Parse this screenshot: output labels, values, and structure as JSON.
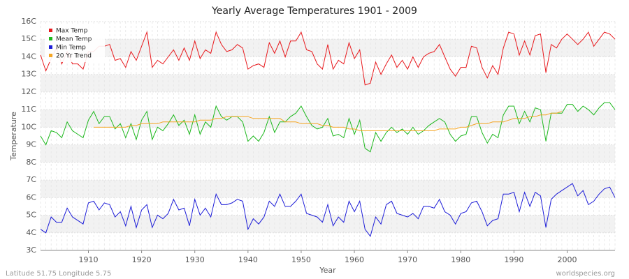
{
  "chart_data": {
    "type": "line",
    "title": "Yearly Average Temperatures 1901 - 2009",
    "x_label": "Year",
    "y_label": "Temperature",
    "footer_left": "Latitude 51.75 Longitude 5.75",
    "footer_right": "worldspecies.org",
    "legend": "top-left",
    "grid": true,
    "xlim": [
      1901,
      2009
    ],
    "xticks": [
      1910,
      1920,
      1930,
      1940,
      1950,
      1960,
      1970,
      1980,
      1990,
      2000
    ],
    "ylim": [
      3,
      16
    ],
    "yticks": [
      {
        "value": 3,
        "label": "3C"
      },
      {
        "value": 4,
        "label": "4C"
      },
      {
        "value": 5,
        "label": "5C"
      },
      {
        "value": 6,
        "label": "6C"
      },
      {
        "value": 7,
        "label": "7C"
      },
      {
        "value": 8,
        "label": "8C"
      },
      {
        "value": 9,
        "label": "9C"
      },
      {
        "value": 10,
        "label": "10C"
      },
      {
        "value": 11,
        "label": "11C"
      },
      {
        "value": 12,
        "label": "12C"
      },
      {
        "value": 13,
        "label": "13C"
      },
      {
        "value": 14,
        "label": "14C"
      },
      {
        "value": 15,
        "label": "15C"
      },
      {
        "value": 16,
        "label": "16C"
      }
    ],
    "x": [
      1901,
      1902,
      1903,
      1904,
      1905,
      1906,
      1907,
      1908,
      1909,
      1910,
      1911,
      1912,
      1913,
      1914,
      1915,
      1916,
      1917,
      1918,
      1919,
      1920,
      1921,
      1922,
      1923,
      1924,
      1925,
      1926,
      1927,
      1928,
      1929,
      1930,
      1931,
      1932,
      1933,
      1934,
      1935,
      1936,
      1937,
      1938,
      1939,
      1940,
      1941,
      1942,
      1943,
      1944,
      1945,
      1946,
      1947,
      1948,
      1949,
      1950,
      1951,
      1952,
      1953,
      1954,
      1955,
      1956,
      1957,
      1958,
      1959,
      1960,
      1961,
      1962,
      1963,
      1964,
      1965,
      1966,
      1967,
      1968,
      1969,
      1970,
      1971,
      1972,
      1973,
      1974,
      1975,
      1976,
      1977,
      1978,
      1979,
      1980,
      1981,
      1982,
      1983,
      1984,
      1985,
      1986,
      1987,
      1988,
      1989,
      1990,
      1991,
      1992,
      1993,
      1994,
      1995,
      1996,
      1997,
      1998,
      1999,
      2000,
      2001,
      2002,
      2003,
      2004,
      2005,
      2006,
      2007,
      2008,
      2009
    ],
    "series": [
      {
        "name": "Max Temp",
        "color": "#e8191d",
        "values": [
          14.1,
          13.2,
          13.9,
          14.5,
          13.6,
          14.3,
          13.6,
          13.6,
          13.3,
          14.3,
          14.3,
          14.6,
          14.6,
          14.7,
          13.8,
          13.9,
          13.4,
          14.3,
          13.8,
          14.6,
          15.4,
          13.4,
          13.8,
          13.6,
          14.0,
          14.4,
          13.8,
          14.5,
          13.8,
          14.9,
          13.9,
          14.4,
          14.2,
          15.4,
          14.7,
          14.3,
          14.4,
          14.7,
          14.5,
          13.3,
          13.5,
          13.6,
          13.4,
          14.8,
          14.2,
          14.9,
          14.0,
          14.9,
          14.9,
          15.4,
          14.4,
          14.3,
          13.6,
          13.3,
          14.7,
          13.3,
          13.8,
          13.6,
          14.8,
          13.9,
          14.4,
          12.4,
          12.5,
          13.7,
          13.0,
          13.6,
          14.1,
          13.4,
          13.8,
          13.3,
          14.0,
          13.4,
          14.0,
          14.2,
          14.3,
          14.7,
          14.0,
          13.3,
          12.9,
          13.4,
          13.4,
          14.6,
          14.5,
          13.4,
          12.8,
          13.5,
          13.0,
          14.5,
          15.4,
          15.3,
          14.1,
          14.9,
          14.1,
          15.2,
          15.3,
          13.1,
          14.7,
          14.5,
          15.0,
          15.3,
          15.0,
          14.7,
          15.0,
          15.4,
          14.6,
          15.0,
          15.4,
          15.3,
          15.0
        ]
      },
      {
        "name": "Mean Temp",
        "color": "#1db81d",
        "values": [
          9.5,
          9.0,
          9.8,
          9.7,
          9.4,
          10.3,
          9.8,
          9.6,
          9.4,
          10.4,
          10.9,
          10.2,
          10.6,
          10.6,
          9.9,
          10.2,
          9.4,
          10.2,
          9.3,
          10.4,
          10.9,
          9.3,
          10.0,
          9.8,
          10.2,
          10.7,
          10.1,
          10.4,
          9.6,
          10.7,
          9.6,
          10.3,
          10.0,
          11.2,
          10.6,
          10.4,
          10.6,
          10.6,
          10.3,
          9.2,
          9.5,
          9.2,
          9.7,
          10.6,
          9.7,
          10.3,
          10.3,
          10.6,
          10.8,
          11.2,
          10.6,
          10.1,
          9.9,
          10.0,
          10.5,
          9.5,
          9.6,
          9.4,
          10.5,
          9.6,
          10.4,
          8.8,
          8.6,
          9.7,
          9.2,
          9.7,
          10.0,
          9.7,
          9.9,
          9.6,
          10.0,
          9.6,
          9.8,
          10.1,
          10.3,
          10.5,
          10.3,
          9.6,
          9.2,
          9.5,
          9.6,
          10.6,
          10.6,
          9.7,
          9.1,
          9.6,
          9.4,
          10.7,
          11.2,
          11.2,
          10.2,
          10.9,
          10.3,
          11.1,
          11.0,
          9.2,
          10.8,
          10.8,
          10.8,
          11.3,
          11.3,
          10.9,
          11.2,
          11.0,
          10.7,
          11.1,
          11.4,
          11.4,
          11.0
        ]
      },
      {
        "name": "Min Temp",
        "color": "#1d1dd8",
        "values": [
          4.2,
          4.0,
          4.9,
          4.6,
          4.6,
          5.4,
          4.9,
          4.7,
          4.5,
          5.7,
          5.8,
          5.3,
          5.7,
          5.6,
          4.9,
          5.2,
          4.4,
          5.5,
          4.3,
          5.3,
          5.6,
          4.3,
          5.0,
          4.8,
          5.1,
          5.9,
          5.3,
          5.4,
          4.4,
          5.9,
          5.0,
          5.4,
          4.9,
          6.2,
          5.6,
          5.6,
          5.7,
          5.9,
          5.8,
          4.2,
          4.8,
          4.5,
          4.9,
          5.8,
          5.5,
          6.2,
          5.5,
          5.5,
          5.8,
          6.2,
          5.1,
          5.0,
          4.9,
          4.6,
          5.6,
          4.4,
          4.9,
          4.6,
          5.8,
          5.2,
          5.8,
          4.2,
          3.8,
          4.9,
          4.5,
          5.6,
          5.8,
          5.1,
          5.0,
          4.9,
          5.1,
          4.8,
          5.5,
          5.5,
          5.4,
          5.9,
          5.2,
          5.0,
          4.5,
          5.1,
          5.2,
          5.7,
          5.8,
          5.2,
          4.4,
          4.7,
          4.8,
          6.2,
          6.2,
          6.3,
          5.2,
          6.3,
          5.5,
          6.3,
          6.1,
          4.3,
          5.9,
          6.2,
          6.4,
          6.6,
          6.8,
          6.1,
          6.4,
          5.6,
          5.8,
          6.2,
          6.5,
          6.6,
          6.0
        ]
      },
      {
        "name": "20 Yr Trend",
        "color": "#f5a623",
        "values": [
          null,
          null,
          null,
          null,
          null,
          null,
          null,
          null,
          null,
          null,
          10.0,
          10.0,
          10.0,
          10.0,
          10.0,
          10.0,
          10.0,
          10.1,
          10.1,
          10.2,
          10.2,
          10.2,
          10.2,
          10.3,
          10.3,
          10.3,
          10.3,
          10.3,
          10.3,
          10.3,
          10.4,
          10.4,
          10.4,
          10.5,
          10.5,
          10.6,
          10.6,
          10.6,
          10.6,
          10.6,
          10.5,
          10.5,
          10.5,
          10.5,
          10.5,
          10.5,
          10.3,
          10.3,
          10.3,
          10.2,
          10.2,
          10.2,
          10.2,
          10.1,
          10.1,
          10.0,
          10.0,
          10.0,
          9.9,
          9.9,
          9.8,
          9.8,
          9.8,
          9.8,
          9.8,
          9.8,
          9.8,
          9.8,
          9.8,
          9.8,
          9.8,
          9.8,
          9.8,
          9.8,
          9.8,
          9.9,
          9.9,
          9.9,
          9.9,
          10.0,
          10.0,
          10.1,
          10.2,
          10.2,
          10.2,
          10.3,
          10.3,
          10.3,
          10.4,
          10.5,
          10.5,
          10.5,
          10.6,
          10.6,
          10.7,
          10.7,
          10.8,
          10.8,
          10.9,
          null,
          null,
          null,
          null,
          null,
          null,
          null,
          null,
          null,
          null
        ]
      }
    ]
  }
}
